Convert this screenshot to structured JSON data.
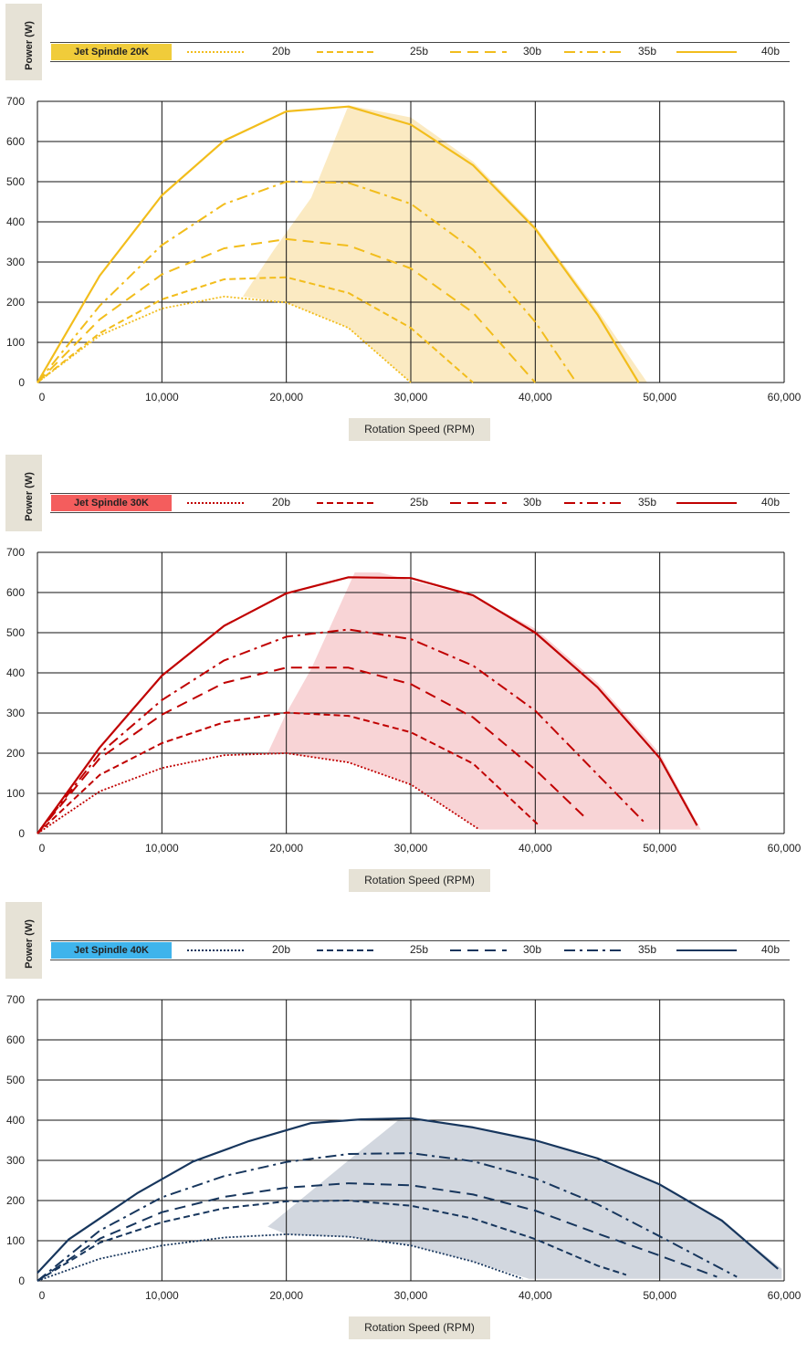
{
  "chart_data": [
    {
      "type": "line",
      "title": "Jet Spindle 20K",
      "ylabel": "Power (W)",
      "xlabel": "Rotation Speed (RPM)",
      "xlim": [
        0,
        60000
      ],
      "ylim": [
        0,
        700
      ],
      "x_ticks": [
        "0",
        "10,000",
        "20,000",
        "30,000",
        "40,000",
        "50,000",
        "60,000"
      ],
      "y_ticks": [
        "0",
        "100",
        "200",
        "300",
        "400",
        "500",
        "600",
        "700"
      ],
      "grid": true,
      "legend_position": "top",
      "colors": {
        "title_bg": "#f0cc3a",
        "line": "#f2bd1c",
        "fill": "#fbe8bb"
      },
      "series": [
        {
          "name": "20b",
          "style": "dotted",
          "x": [
            0,
            5000,
            10000,
            15000,
            20000,
            25000,
            30000
          ],
          "y": [
            0,
            117,
            184,
            214,
            199,
            136,
            0
          ]
        },
        {
          "name": "25b",
          "style": "dashed",
          "x": [
            0,
            5000,
            10000,
            15000,
            20000,
            25000,
            30000,
            35000
          ],
          "y": [
            0,
            123,
            207,
            257,
            262,
            223,
            136,
            0
          ]
        },
        {
          "name": "30b",
          "style": "longdash",
          "x": [
            0,
            5000,
            10000,
            15000,
            20000,
            25000,
            30000,
            35000,
            40000
          ],
          "y": [
            0,
            157,
            269,
            334,
            357,
            341,
            284,
            174,
            0
          ]
        },
        {
          "name": "35b",
          "style": "dashdot",
          "x": [
            0,
            5000,
            10000,
            15000,
            20000,
            25000,
            30000,
            35000,
            40000,
            43300
          ],
          "y": [
            0,
            191,
            342,
            444,
            500,
            497,
            445,
            331,
            151,
            0
          ]
        },
        {
          "name": "40b",
          "style": "solid",
          "x": [
            0,
            5000,
            10000,
            15000,
            20000,
            25000,
            30000,
            35000,
            40000,
            45000,
            48300
          ],
          "y": [
            0,
            266,
            466,
            602,
            675,
            687,
            642,
            541,
            383,
            169,
            0
          ]
        }
      ],
      "shaded_region": {
        "x": [
          16500,
          19000,
          22000,
          25000,
          30000,
          35000,
          40000,
          45000,
          49000,
          30000,
          25000,
          20000,
          16500
        ],
        "y": [
          214,
          330,
          460,
          690,
          660,
          550,
          390,
          180,
          0,
          0,
          136,
          199,
          214
        ]
      }
    },
    {
      "type": "line",
      "title": "Jet Spindle 30K",
      "ylabel": "Power (W)",
      "xlabel": "Rotation Speed (RPM)",
      "xlim": [
        0,
        60000
      ],
      "ylim": [
        0,
        700
      ],
      "x_ticks": [
        "0",
        "10,000",
        "20,000",
        "30,000",
        "40,000",
        "50,000",
        "60,000"
      ],
      "y_ticks": [
        "0",
        "100",
        "200",
        "300",
        "400",
        "500",
        "600",
        "700"
      ],
      "grid": true,
      "legend_position": "top",
      "colors": {
        "title_bg": "#f45d5d",
        "line": "#c00000",
        "fill": "#f7cfd1"
      },
      "series": [
        {
          "name": "20b",
          "style": "dotted",
          "x": [
            0,
            5000,
            10000,
            15000,
            20000,
            25000,
            30000,
            35500
          ],
          "y": [
            0,
            105,
            163,
            195,
            200,
            177,
            122,
            10
          ]
        },
        {
          "name": "25b",
          "style": "dashed",
          "x": [
            0,
            5000,
            10000,
            15000,
            20000,
            25000,
            30000,
            35000,
            40300
          ],
          "y": [
            0,
            146,
            225,
            277,
            301,
            293,
            252,
            174,
            20
          ]
        },
        {
          "name": "30b",
          "style": "longdash",
          "x": [
            0,
            5000,
            10000,
            15000,
            20000,
            25000,
            30000,
            35000,
            40000,
            44000
          ],
          "y": [
            0,
            187,
            296,
            375,
            413,
            413,
            372,
            289,
            159,
            40
          ]
        },
        {
          "name": "35b",
          "style": "dashdot",
          "x": [
            0,
            5000,
            10000,
            15000,
            20000,
            25000,
            30000,
            35000,
            40000,
            45000,
            48700
          ],
          "y": [
            0,
            199,
            332,
            431,
            490,
            508,
            484,
            418,
            306,
            147,
            30
          ]
        },
        {
          "name": "40b",
          "style": "solid",
          "x": [
            0,
            5000,
            10000,
            15000,
            20000,
            25000,
            30000,
            35000,
            40000,
            45000,
            50000,
            53000
          ],
          "y": [
            0,
            214,
            393,
            517,
            598,
            638,
            636,
            593,
            500,
            364,
            188,
            20
          ]
        }
      ],
      "shaded_region": {
        "x": [
          18500,
          20000,
          22000,
          25500,
          27500,
          30000,
          35000,
          40000,
          45000,
          50000,
          53300,
          35500,
          30000,
          25000,
          20000,
          18500
        ],
        "y": [
          200,
          300,
          410,
          650,
          650,
          630,
          590,
          510,
          375,
          200,
          10,
          10,
          122,
          177,
          200,
          200
        ]
      }
    },
    {
      "type": "line",
      "title": "Jet Spindle 40K",
      "ylabel": "Power (W)",
      "xlabel": "Rotation Speed (RPM)",
      "xlim": [
        0,
        60000
      ],
      "ylim": [
        0,
        700
      ],
      "x_ticks": [
        "0",
        "10,000",
        "20,000",
        "30,000",
        "40,000",
        "50,000",
        "60,000"
      ],
      "y_ticks": [
        "0",
        "100",
        "200",
        "300",
        "400",
        "500",
        "600",
        "700"
      ],
      "grid": true,
      "legend_position": "top",
      "colors": {
        "title_bg": "#3fb4ec",
        "line": "#17365d",
        "fill": "#cdd3dc"
      },
      "series": [
        {
          "name": "20b",
          "style": "dotted",
          "x": [
            0,
            5000,
            10000,
            15000,
            20000,
            25000,
            30000,
            35000,
            39000
          ],
          "y": [
            0,
            55,
            88,
            108,
            116,
            110,
            88,
            48,
            5
          ]
        },
        {
          "name": "25b",
          "style": "dashed",
          "x": [
            0,
            5000,
            10000,
            15000,
            20000,
            25000,
            30000,
            35000,
            40000,
            45000,
            47300
          ],
          "y": [
            0,
            95,
            146,
            181,
            198,
            200,
            187,
            155,
            104,
            38,
            15
          ]
        },
        {
          "name": "30b",
          "style": "longdash",
          "x": [
            0,
            5000,
            10000,
            15000,
            20000,
            25000,
            30000,
            35000,
            40000,
            45000,
            50000,
            54600
          ],
          "y": [
            0,
            105,
            171,
            209,
            232,
            243,
            238,
            215,
            175,
            118,
            63,
            10
          ]
        },
        {
          "name": "35b",
          "style": "dashdot",
          "x": [
            0,
            5000,
            10000,
            15000,
            20000,
            25000,
            30000,
            35000,
            40000,
            45000,
            50000,
            56200
          ],
          "y": [
            0,
            125,
            208,
            261,
            296,
            316,
            318,
            298,
            255,
            191,
            111,
            10
          ]
        },
        {
          "name": "40b",
          "style": "solid",
          "x": [
            0,
            2500,
            8000,
            12500,
            17000,
            22000,
            26000,
            30000,
            35000,
            40000,
            45000,
            50000,
            55000,
            59500
          ],
          "y": [
            20,
            103,
            218,
            297,
            348,
            393,
            402,
            405,
            382,
            350,
            305,
            240,
            150,
            30
          ]
        }
      ],
      "shaded_region": {
        "x": [
          18500,
          25000,
          29000,
          31500,
          35000,
          40000,
          45000,
          50000,
          55000,
          59800,
          59800,
          39500,
          35000,
          30000,
          25000,
          20000,
          18500
        ],
        "y": [
          135,
          300,
          400,
          400,
          380,
          350,
          300,
          240,
          150,
          30,
          5,
          5,
          48,
          88,
          110,
          116,
          135
        ]
      }
    }
  ]
}
